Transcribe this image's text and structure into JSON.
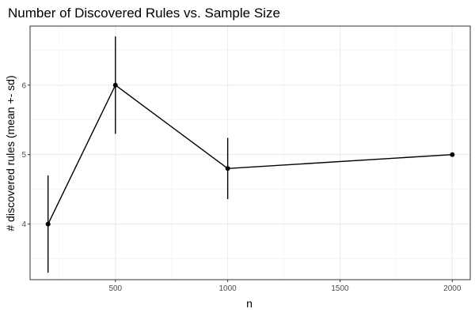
{
  "chart_data": {
    "type": "line",
    "title": "Number of Discovered Rules vs. Sample Size",
    "xlabel": "n",
    "ylabel": "# discovered rules (mean +- sd)",
    "xlim": [
      120,
      2080
    ],
    "ylim": [
      3.2,
      6.85
    ],
    "x_ticks": [
      500,
      1000,
      1500,
      2000
    ],
    "y_ticks": [
      4,
      5,
      6
    ],
    "grid": true,
    "series": [
      {
        "x": [
          200,
          500,
          1000,
          2000
        ],
        "y": [
          4.0,
          6.0,
          4.8,
          5.0
        ],
        "sd": [
          0.7,
          0.7,
          0.44,
          0.0
        ]
      }
    ]
  }
}
